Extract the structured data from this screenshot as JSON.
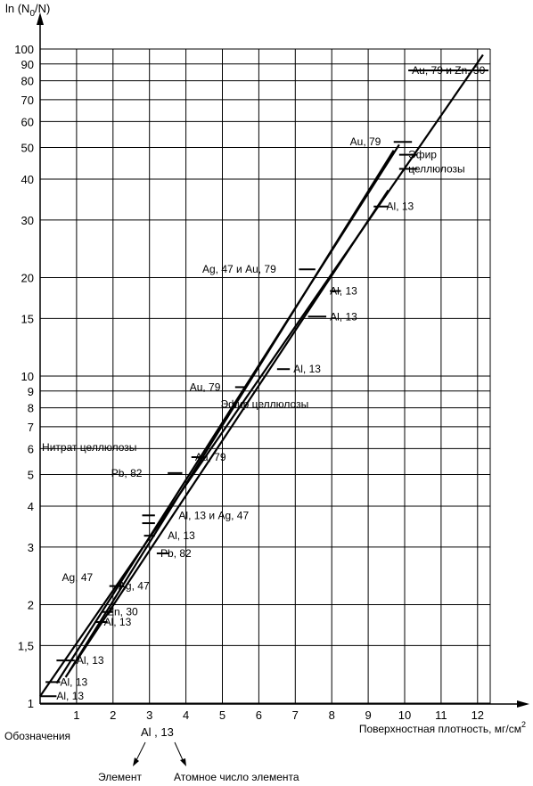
{
  "chart_data": {
    "type": "line",
    "ylabel_parts": [
      "ln (N",
      "0",
      "/N)"
    ],
    "xlabel": "Поверхностная плотность, мг/см",
    "xlabel_sup": "2",
    "x_scale": "linear",
    "y_scale": "log",
    "xlim": [
      0,
      12.2
    ],
    "ylim": [
      1,
      100
    ],
    "x_ticks": [
      "1",
      "2",
      "3",
      "4",
      "5",
      "6",
      "7",
      "8",
      "9",
      "10",
      "11",
      "12"
    ],
    "y_ticks": [
      {
        "v": 1,
        "label": "1"
      },
      {
        "v": 1.5,
        "label": "1,5"
      },
      {
        "v": 2,
        "label": "2"
      },
      {
        "v": 3,
        "label": "3"
      },
      {
        "v": 4,
        "label": "4"
      },
      {
        "v": 5,
        "label": "5"
      },
      {
        "v": 6,
        "label": "6"
      },
      {
        "v": 7,
        "label": "7"
      },
      {
        "v": 8,
        "label": "8"
      },
      {
        "v": 9,
        "label": "9"
      },
      {
        "v": 10,
        "label": "10"
      },
      {
        "v": 15,
        "label": "15"
      },
      {
        "v": 20,
        "label": "20"
      },
      {
        "v": 30,
        "label": "30"
      },
      {
        "v": 40,
        "label": "40"
      },
      {
        "v": 50,
        "label": "50"
      },
      {
        "v": 60,
        "label": "60"
      },
      {
        "v": 70,
        "label": "70"
      },
      {
        "v": 80,
        "label": "80"
      },
      {
        "v": 90,
        "label": "90"
      },
      {
        "v": 100,
        "label": "100"
      }
    ],
    "grid": true,
    "series": [
      {
        "points": [
          [
            0.0,
            1.05
          ],
          [
            12.15,
            96
          ]
        ]
      },
      {
        "points": [
          [
            0.45,
            1.15
          ],
          [
            9.85,
            51
          ]
        ]
      },
      {
        "points": [
          [
            0.7,
            1.2
          ],
          [
            9.55,
            37
          ]
        ]
      },
      {
        "points": [
          [
            0.8,
            1.25
          ],
          [
            9.7,
            49
          ]
        ]
      }
    ],
    "annotations": [
      {
        "text": "Au, 79 и Zn, 30",
        "x": 10.2,
        "y": 86,
        "tick": [
          10.1,
          12.3
        ]
      },
      {
        "text": "Au, 79",
        "x": 8.5,
        "y": 52,
        "tick": [
          9.7,
          10.2
        ]
      },
      {
        "text": "Эфир",
        "x": 10.1,
        "y": 47.5,
        "tick": [
          9.85,
          10.35
        ]
      },
      {
        "text": "целлюлозы",
        "x": 10.1,
        "y": 43,
        "tick": [
          9.85,
          10.35
        ]
      },
      {
        "text": "Al, 13",
        "x": 9.5,
        "y": 33,
        "tick": [
          9.15,
          9.55
        ]
      },
      {
        "text": "Ag, 47 и Au, 79",
        "x": 4.45,
        "y": 21.2,
        "tick": [
          7.1,
          7.55
        ]
      },
      {
        "text": "Al, 13",
        "x": 7.95,
        "y": 18.2,
        "tick": [
          7.95,
          8.25
        ]
      },
      {
        "text": "Al, 13",
        "x": 7.95,
        "y": 15.2,
        "tick": [
          7.35,
          7.85
        ]
      },
      {
        "text": "Al, 13",
        "x": 6.95,
        "y": 10.5,
        "tick": [
          6.5,
          6.85
        ]
      },
      {
        "text": "Au, 79",
        "x": 4.1,
        "y": 9.25,
        "tick": [
          5.35,
          5.65
        ]
      },
      {
        "text": "Эфир целлюлозы",
        "x": 4.95,
        "y": 8.2
      },
      {
        "text": "Нитрат целлюлозы",
        "x": 0.05,
        "y": 6.05
      },
      {
        "text": "Au, 79",
        "x": 4.25,
        "y": 5.65,
        "tick": [
          4.15,
          4.55
        ]
      },
      {
        "text": "Pb, 82",
        "x": 1.95,
        "y": 5.05,
        "tick": [
          3.5,
          3.9
        ]
      },
      {
        "text": "Al, 13 и Ag, 47",
        "x": 3.8,
        "y": 3.75,
        "tick": [
          2.8,
          3.15
        ]
      },
      {
        "text": "Al, 13",
        "x": 3.5,
        "y": 3.25,
        "tick": [
          2.85,
          3.15
        ]
      },
      {
        "text": "Pb, 82",
        "x": 3.3,
        "y": 2.87,
        "tick": [
          3.2,
          3.55
        ]
      },
      {
        "text": "Ag, 47",
        "x": 0.6,
        "y": 2.42
      },
      {
        "text": "Ag, 47",
        "x": 2.15,
        "y": 2.28,
        "tick": [
          1.9,
          2.25
        ]
      },
      {
        "text": "Zn, 30",
        "x": 1.85,
        "y": 1.9,
        "tick": [
          1.7,
          2.0
        ]
      },
      {
        "text": "Al, 13",
        "x": 1.75,
        "y": 1.77,
        "tick": [
          1.5,
          1.85
        ]
      },
      {
        "text": "Al, 13",
        "x": 1.0,
        "y": 1.35,
        "tick": [
          0.45,
          0.95
        ]
      },
      {
        "text": "Al, 13",
        "x": 0.55,
        "y": 1.16,
        "tick": [
          0.15,
          0.55
        ]
      },
      {
        "text": "Al, 13",
        "x": 0.45,
        "y": 1.05,
        "tick": [
          0.0,
          0.45
        ]
      }
    ],
    "legend_note": {
      "title": "Обозначения",
      "sample": "Al , 13",
      "element_label": "Элемент",
      "atomic_label": "Атомное число элемента"
    }
  }
}
